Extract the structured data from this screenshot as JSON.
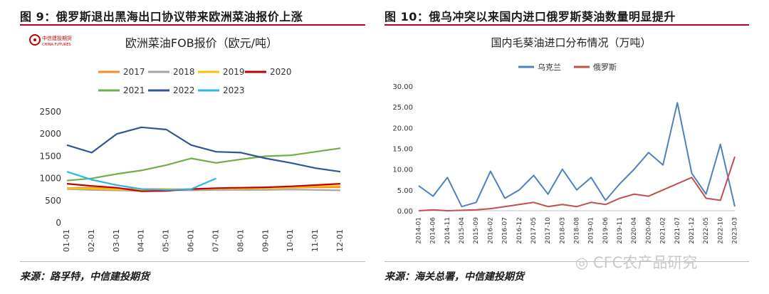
{
  "left_figure": {
    "caption": "图 9：俄罗斯退出黑海出口协议带来欧洲菜油报价上涨",
    "source": "来源：路孚特，中信建投期货",
    "logo_text": "中信建投期货",
    "logo_subtext": "CHINA FUTURES"
  },
  "right_figure": {
    "caption": "图 10：俄乌冲突以来国内进口俄罗斯葵油数量明显提升",
    "source": "来源：海关总署，中信建投期货"
  },
  "watermark": "CFC农产品研究",
  "chart_data": [
    {
      "type": "line",
      "title": "欧洲菜油FOB报价（欧元/吨）",
      "x": [
        "01-01",
        "02-01",
        "03-01",
        "04-01",
        "05-01",
        "06-01",
        "07-01",
        "08-01",
        "09-01",
        "10-01",
        "11-01",
        "12-01"
      ],
      "ylim": [
        0,
        2500
      ],
      "yticks": [
        0,
        500,
        1000,
        1500,
        2000,
        2500
      ],
      "legend_position": "top",
      "grid": false,
      "series": [
        {
          "name": "2017",
          "color": "#f28e2b",
          "values": [
            780,
            790,
            770,
            760,
            760,
            750,
            760,
            770,
            780,
            790,
            800,
            800
          ]
        },
        {
          "name": "2018",
          "color": "#a5a5a5",
          "values": [
            760,
            740,
            730,
            720,
            740,
            730,
            740,
            740,
            740,
            750,
            740,
            730
          ]
        },
        {
          "name": "2019",
          "color": "#ffc000",
          "values": [
            770,
            770,
            750,
            740,
            750,
            760,
            770,
            770,
            780,
            800,
            820,
            830
          ]
        },
        {
          "name": "2020",
          "color": "#c00000",
          "values": [
            880,
            830,
            790,
            710,
            720,
            760,
            780,
            790,
            800,
            820,
            850,
            880
          ]
        },
        {
          "name": "2021",
          "color": "#70ad47",
          "values": [
            950,
            1000,
            1100,
            1180,
            1300,
            1450,
            1350,
            1430,
            1500,
            1520,
            1600,
            1680
          ]
        },
        {
          "name": "2022",
          "color": "#2f5597",
          "values": [
            1750,
            1580,
            2000,
            2150,
            2100,
            1750,
            1600,
            1580,
            1450,
            1350,
            1230,
            1150
          ]
        },
        {
          "name": "2023",
          "color": "#2eb6e8",
          "values": [
            1150,
            970,
            850,
            760,
            740,
            760,
            1000,
            null,
            null,
            null,
            null,
            null
          ]
        }
      ]
    },
    {
      "type": "line",
      "title": "国内毛葵油进口分布情况（万吨）",
      "x": [
        "2014-01",
        "2014-06",
        "2014-11",
        "2015-04",
        "2015-09",
        "2016-02",
        "2016-07",
        "2016-12",
        "2017-05",
        "2017-10",
        "2018-03",
        "2018-08",
        "2019-01",
        "2019-06",
        "2019-11",
        "2020-04",
        "2020-09",
        "2021-02",
        "2021-07",
        "2021-12",
        "2022-05",
        "2022-10",
        "2023-03"
      ],
      "ylim": [
        0,
        30
      ],
      "yticks": [
        "0.00",
        "5.00",
        "10.00",
        "15.00",
        "20.00",
        "25.00",
        "30.00"
      ],
      "legend_position": "top",
      "grid": false,
      "series": [
        {
          "name": "乌克兰",
          "color": "#4f81bd",
          "values": [
            6.0,
            3.5,
            8.0,
            1.0,
            2.0,
            9.5,
            3.0,
            5.0,
            8.5,
            4.0,
            10.0,
            5.0,
            8.0,
            2.5,
            6.5,
            10.0,
            14.0,
            11.0,
            26.0,
            9.0,
            4.0,
            16.0,
            1.0
          ]
        },
        {
          "name": "俄罗斯",
          "color": "#c0504d",
          "values": [
            0.0,
            0.2,
            0.0,
            0.1,
            0.2,
            0.5,
            1.0,
            1.5,
            2.0,
            1.0,
            1.5,
            1.0,
            2.0,
            1.5,
            3.0,
            4.0,
            3.5,
            5.0,
            6.5,
            8.0,
            3.0,
            2.5,
            13.0
          ]
        }
      ]
    }
  ]
}
